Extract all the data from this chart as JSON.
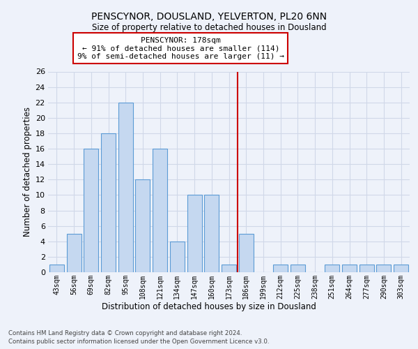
{
  "title": "PENSCYNOR, DOUSLAND, YELVERTON, PL20 6NN",
  "subtitle": "Size of property relative to detached houses in Dousland",
  "xlabel": "Distribution of detached houses by size in Dousland",
  "ylabel": "Number of detached properties",
  "bin_labels": [
    "43sqm",
    "56sqm",
    "69sqm",
    "82sqm",
    "95sqm",
    "108sqm",
    "121sqm",
    "134sqm",
    "147sqm",
    "160sqm",
    "173sqm",
    "186sqm",
    "199sqm",
    "212sqm",
    "225sqm",
    "238sqm",
    "251sqm",
    "264sqm",
    "277sqm",
    "290sqm",
    "303sqm"
  ],
  "bar_values": [
    1,
    5,
    16,
    18,
    22,
    12,
    16,
    4,
    10,
    10,
    1,
    5,
    0,
    1,
    1,
    0,
    1,
    1,
    1,
    1,
    1
  ],
  "bar_color": "#c5d8f0",
  "bar_edgecolor": "#5b9bd5",
  "grid_color": "#d0d8e8",
  "background_color": "#eef2fa",
  "vline_x": 10.5,
  "vline_color": "#cc0000",
  "annotation_text": "PENSCYNOR: 178sqm\n← 91% of detached houses are smaller (114)\n9% of semi-detached houses are larger (11) →",
  "annotation_box_facecolor": "#ffffff",
  "annotation_box_edgecolor": "#cc0000",
  "footer_line1": "Contains HM Land Registry data © Crown copyright and database right 2024.",
  "footer_line2": "Contains public sector information licensed under the Open Government Licence v3.0.",
  "ylim": [
    0,
    26
  ],
  "yticks": [
    0,
    2,
    4,
    6,
    8,
    10,
    12,
    14,
    16,
    18,
    20,
    22,
    24,
    26
  ]
}
